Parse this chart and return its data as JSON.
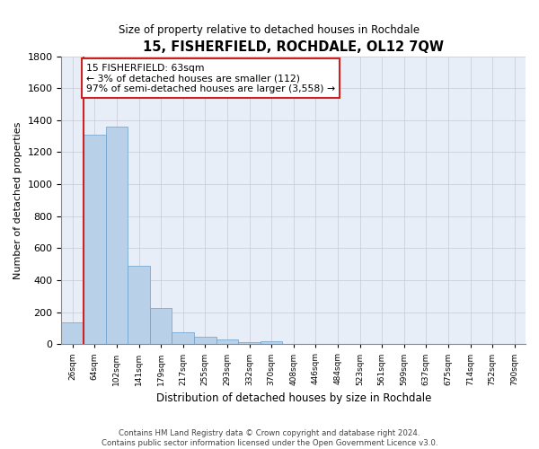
{
  "title": "15, FISHERFIELD, ROCHDALE, OL12 7QW",
  "subtitle": "Size of property relative to detached houses in Rochdale",
  "xlabel": "Distribution of detached houses by size in Rochdale",
  "ylabel": "Number of detached properties",
  "bar_values": [
    135,
    1310,
    1360,
    490,
    225,
    75,
    45,
    28,
    15,
    20,
    0,
    0,
    0,
    0,
    0,
    0,
    0,
    0,
    0,
    0,
    0
  ],
  "categories": [
    "26sqm",
    "64sqm",
    "102sqm",
    "141sqm",
    "179sqm",
    "217sqm",
    "255sqm",
    "293sqm",
    "332sqm",
    "370sqm",
    "408sqm",
    "446sqm",
    "484sqm",
    "523sqm",
    "561sqm",
    "599sqm",
    "637sqm",
    "675sqm",
    "714sqm",
    "752sqm",
    "790sqm"
  ],
  "bar_color": "#b8d0e8",
  "bar_edge_color": "#6aa0cc",
  "vline_color": "#cc2222",
  "ylim": [
    0,
    1800
  ],
  "yticks": [
    0,
    200,
    400,
    600,
    800,
    1000,
    1200,
    1400,
    1600,
    1800
  ],
  "annotation_text": "15 FISHERFIELD: 63sqm\n← 3% of detached houses are smaller (112)\n97% of semi-detached houses are larger (3,558) →",
  "annotation_box_color": "#cc2222",
  "footer_line1": "Contains HM Land Registry data © Crown copyright and database right 2024.",
  "footer_line2": "Contains public sector information licensed under the Open Government Licence v3.0.",
  "background_color": "#ffffff",
  "axes_bg_color": "#e8eef8",
  "grid_color": "#c8c8d8"
}
